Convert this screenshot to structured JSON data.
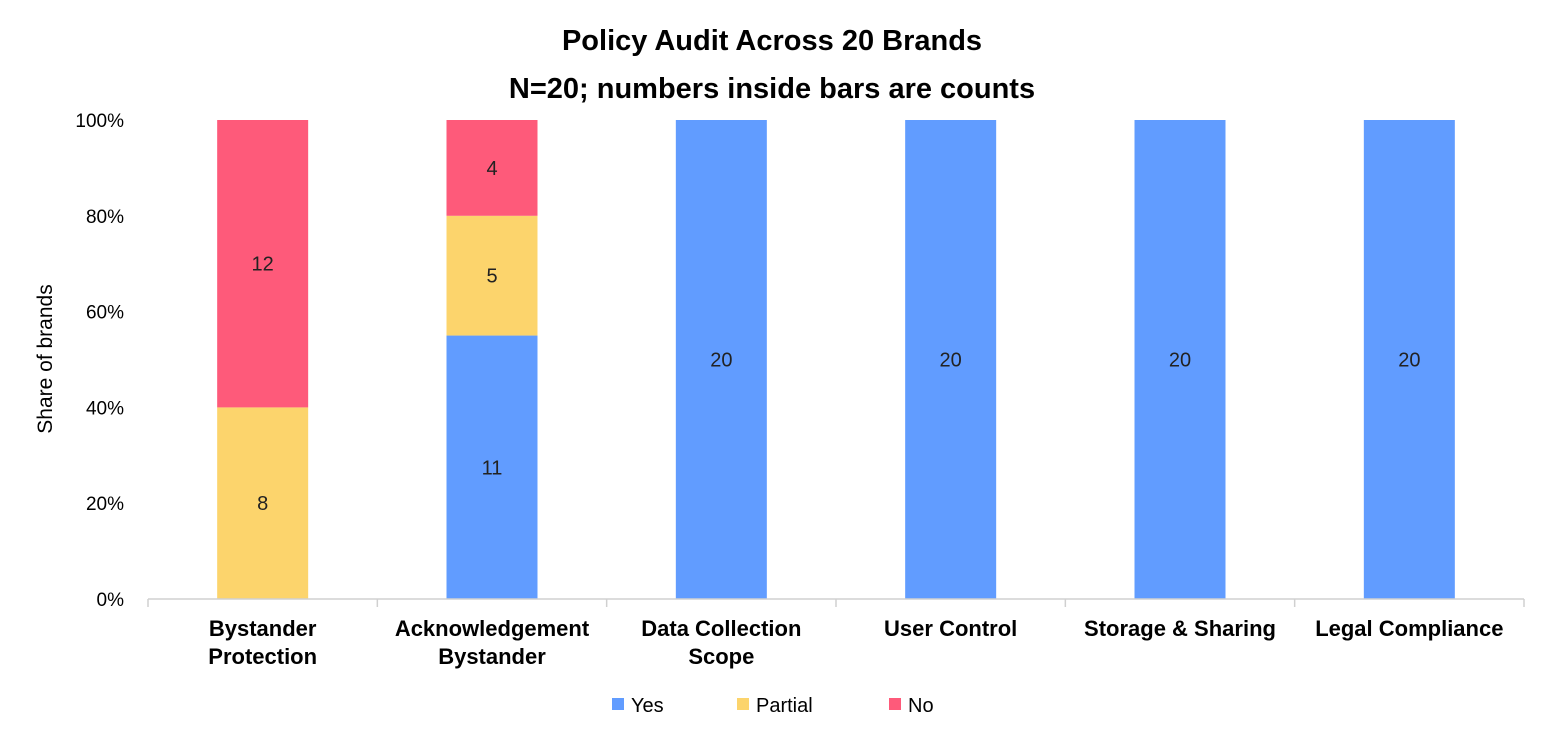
{
  "chart_data": {
    "type": "bar",
    "stacked": true,
    "percent_stacked": true,
    "title": "Policy Audit Across 20 Brands",
    "subtitle": "N=20; numbers inside bars are counts",
    "ylabel": "Share of brands",
    "xlabel": "",
    "ylim": [
      0,
      100
    ],
    "yticks": [
      "0%",
      "20%",
      "40%",
      "60%",
      "80%",
      "100%"
    ],
    "categories": [
      [
        "Bystander",
        "Protection"
      ],
      [
        "Acknowledgement",
        "Bystander"
      ],
      [
        "Data Collection",
        "Scope"
      ],
      [
        "User Control"
      ],
      [
        "Storage & Sharing"
      ],
      [
        "Legal Compliance"
      ]
    ],
    "series": [
      {
        "name": "Yes",
        "color": "#619cff",
        "values": [
          0,
          11,
          20,
          20,
          20,
          20
        ]
      },
      {
        "name": "Partial",
        "color": "#fcd46c",
        "values": [
          8,
          5,
          0,
          0,
          0,
          0
        ]
      },
      {
        "name": "No",
        "color": "#fe5a7a",
        "values": [
          12,
          4,
          0,
          0,
          0,
          0
        ]
      }
    ],
    "total": 20,
    "legend_position": "bottom",
    "grid": false
  }
}
